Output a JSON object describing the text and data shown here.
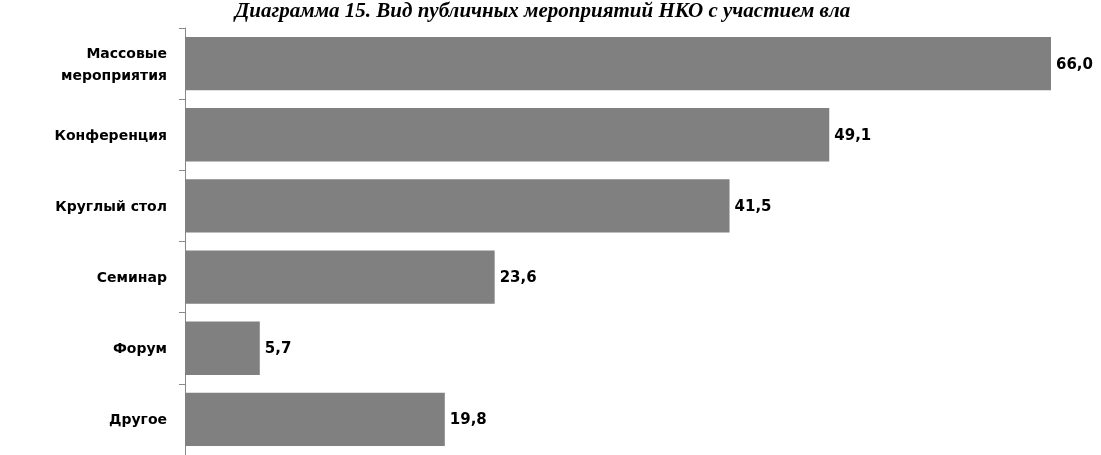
{
  "chart_data": {
    "type": "bar",
    "orientation": "horizontal",
    "title": "Диаграмма 15. Вид публичных мероприятий НКО с участием вла",
    "categories": [
      "Массовые\nмероприятия",
      "Конференция",
      "Круглый стол",
      "Семинар",
      "Форум",
      "Другое"
    ],
    "values": [
      66.0,
      49.1,
      41.5,
      23.6,
      5.7,
      19.8
    ],
    "value_labels": [
      "66,0",
      "49,1",
      "41,5",
      "23,6",
      "5,7",
      "19,8"
    ],
    "color": "#808080"
  }
}
